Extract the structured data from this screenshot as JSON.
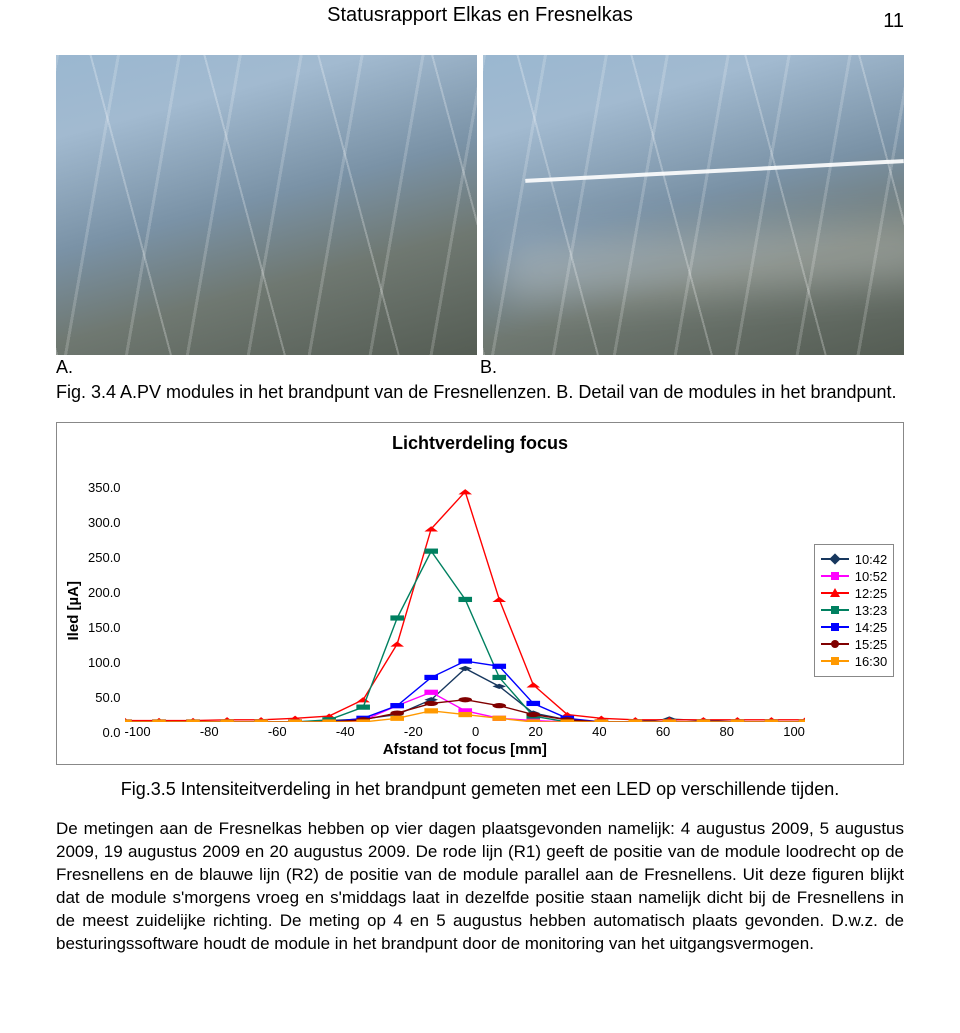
{
  "header": {
    "title": "Statusrapport Elkas en Fresnelkas",
    "page_number": "11"
  },
  "photo_labels": {
    "a": "A.",
    "b": "B."
  },
  "caption1": "Fig. 3.4 A.PV modules in het brandpunt van de Fresnellenzen. B. Detail van de modules in het brandpunt.",
  "chart": {
    "type": "line",
    "title": "Lichtverdeling focus",
    "ylabel": "Iled [µA]",
    "xlabel": "Afstand tot focus [mm]",
    "xlim": [
      -100,
      100
    ],
    "ylim": [
      0,
      350
    ],
    "xtick_step": 20,
    "ytick_step": 50,
    "xticks": [
      "-100",
      "-80",
      "-60",
      "-40",
      "-20",
      "0",
      "20",
      "40",
      "60",
      "80",
      "100"
    ],
    "yticks": [
      "350.0",
      "300.0",
      "250.0",
      "200.0",
      "150.0",
      "100.0",
      "50.0",
      "0.0"
    ],
    "line_width": 1.4,
    "marker_size": 6,
    "background_color": "#ffffff",
    "border_color": "#888888",
    "series": [
      {
        "name": "10:42",
        "color": "#17375e",
        "marker": "diamond",
        "x": [
          -100,
          -90,
          -80,
          -70,
          -60,
          -50,
          -40,
          -30,
          -20,
          -10,
          0,
          10,
          20,
          30,
          40,
          50,
          60,
          70,
          80,
          90,
          100
        ],
        "y": [
          0,
          0,
          0,
          0,
          0,
          0,
          2,
          4,
          10,
          30,
          72,
          48,
          12,
          3,
          0,
          0,
          4,
          2,
          0,
          0,
          0
        ]
      },
      {
        "name": "10:52",
        "color": "#ff00ff",
        "marker": "square",
        "x": [
          -100,
          -90,
          -80,
          -70,
          -60,
          -50,
          -40,
          -30,
          -20,
          -10,
          0,
          10,
          20,
          30,
          40,
          50,
          60,
          70,
          80,
          90,
          100
        ],
        "y": [
          0,
          0,
          0,
          0,
          0,
          0,
          0,
          2,
          22,
          40,
          15,
          5,
          2,
          0,
          0,
          0,
          0,
          0,
          0,
          0,
          0
        ]
      },
      {
        "name": "12:25",
        "color": "#ff0000",
        "marker": "triangle",
        "x": [
          -100,
          -90,
          -80,
          -70,
          -60,
          -50,
          -40,
          -30,
          -20,
          -10,
          0,
          10,
          20,
          30,
          40,
          50,
          60,
          70,
          80,
          90,
          100
        ],
        "y": [
          2,
          2,
          2,
          3,
          3,
          5,
          8,
          30,
          105,
          260,
          310,
          165,
          50,
          10,
          5,
          3,
          3,
          3,
          3,
          3,
          3
        ]
      },
      {
        "name": "13:23",
        "color": "#008060",
        "marker": "square",
        "x": [
          -100,
          -90,
          -80,
          -70,
          -60,
          -50,
          -40,
          -30,
          -20,
          -10,
          0,
          10,
          20,
          30,
          40,
          50,
          60,
          70,
          80,
          90,
          100
        ],
        "y": [
          0,
          0,
          0,
          0,
          0,
          0,
          3,
          20,
          140,
          230,
          165,
          60,
          8,
          0,
          0,
          0,
          0,
          0,
          0,
          0,
          0
        ]
      },
      {
        "name": "14:25",
        "color": "#0000ff",
        "marker": "square",
        "x": [
          -100,
          -90,
          -80,
          -70,
          -60,
          -50,
          -40,
          -30,
          -20,
          -10,
          0,
          10,
          20,
          30,
          40,
          50,
          60,
          70,
          80,
          90,
          100
        ],
        "y": [
          0,
          0,
          0,
          0,
          0,
          0,
          0,
          5,
          22,
          60,
          82,
          75,
          25,
          5,
          0,
          0,
          0,
          0,
          0,
          0,
          0
        ]
      },
      {
        "name": "15:25",
        "color": "#800000",
        "marker": "circle",
        "x": [
          -100,
          -90,
          -80,
          -70,
          -60,
          -50,
          -40,
          -30,
          -20,
          -10,
          0,
          10,
          20,
          30,
          40,
          50,
          60,
          70,
          80,
          90,
          100
        ],
        "y": [
          0,
          0,
          0,
          0,
          0,
          0,
          0,
          3,
          12,
          25,
          30,
          22,
          10,
          3,
          0,
          0,
          0,
          0,
          0,
          0,
          0
        ]
      },
      {
        "name": "16:30",
        "color": "#ff9900",
        "marker": "square",
        "x": [
          -100,
          -90,
          -80,
          -70,
          -60,
          -50,
          -40,
          -30,
          -20,
          -10,
          0,
          10,
          20,
          30,
          40,
          50,
          60,
          70,
          80,
          90,
          100
        ],
        "y": [
          0,
          0,
          0,
          0,
          0,
          0,
          0,
          0,
          5,
          15,
          10,
          5,
          0,
          0,
          0,
          0,
          0,
          0,
          0,
          0,
          0
        ]
      }
    ]
  },
  "caption2": "Fig.3.5 Intensiteitverdeling in het brandpunt gemeten met een LED op verschillende tijden.",
  "paragraph": "De metingen aan de Fresnelkas hebben op vier dagen plaatsgevonden namelijk: 4 augustus 2009, 5 augustus 2009, 19 augustus 2009 en 20 augustus 2009. De rode lijn (R1) geeft de positie van de module loodrecht op de Fresnellens en de blauwe lijn (R2) de positie van de module parallel aan de Fresnellens. Uit deze figuren blijkt dat de module s'morgens vroeg en s'middags laat in dezelfde positie staan namelijk dicht bij de Fresnellens in de meest zuidelijke richting. De meting op 4 en 5 augustus hebben automatisch plaats gevonden. D.w.z. de besturingssoftware houdt de module in het brandpunt door de monitoring van het uitgangsvermogen."
}
